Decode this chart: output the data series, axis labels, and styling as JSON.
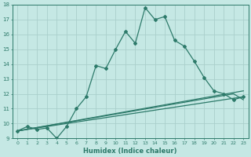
{
  "xlabel": "Humidex (Indice chaleur)",
  "xlim": [
    -0.5,
    23.5
  ],
  "ylim": [
    9,
    18
  ],
  "xticks": [
    0,
    1,
    2,
    3,
    4,
    5,
    6,
    7,
    8,
    9,
    10,
    11,
    12,
    13,
    14,
    15,
    16,
    17,
    18,
    19,
    20,
    21,
    22,
    23
  ],
  "yticks": [
    9,
    10,
    11,
    12,
    13,
    14,
    15,
    16,
    17,
    18
  ],
  "line_color": "#2d7a6a",
  "bg_color": "#c5e8e4",
  "grid_color": "#b0d8d4",
  "series": [
    {
      "x": [
        0,
        1,
        2,
        3,
        4,
        5,
        6,
        7,
        8,
        9,
        10,
        11,
        12,
        13,
        14,
        15,
        16,
        17,
        18,
        19,
        20,
        21,
        22,
        23
      ],
      "y": [
        9.5,
        9.8,
        9.6,
        9.7,
        9.0,
        9.8,
        11.0,
        11.8,
        13.9,
        13.7,
        15.0,
        16.2,
        15.4,
        17.8,
        17.0,
        17.2,
        15.6,
        15.2,
        14.2,
        13.1,
        12.2,
        12.0,
        11.6,
        11.8
      ],
      "marker": true
    },
    {
      "x": [
        0,
        23
      ],
      "y": [
        9.5,
        12.2
      ],
      "marker": false
    },
    {
      "x": [
        0,
        23
      ],
      "y": [
        9.5,
        11.8
      ],
      "marker": false
    },
    {
      "x": [
        0,
        22,
        23
      ],
      "y": [
        9.5,
        12.0,
        11.6
      ],
      "marker": false
    }
  ]
}
